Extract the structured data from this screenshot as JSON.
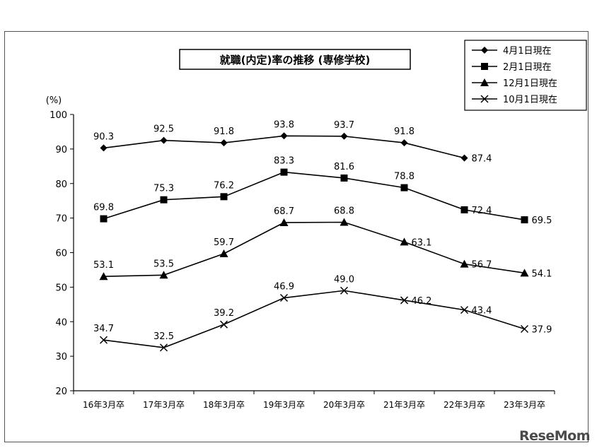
{
  "watermark": "ReseMom",
  "chart_data": {
    "type": "line",
    "title": "就職(内定)率の推移 (専修学校)",
    "y_unit": "(%)",
    "ylim": [
      20,
      100
    ],
    "yticks": [
      20,
      30,
      40,
      50,
      60,
      70,
      80,
      90,
      100
    ],
    "categories": [
      "16年3月卒",
      "17年3月卒",
      "18年3月卒",
      "19年3月卒",
      "20年3月卒",
      "21年3月卒",
      "22年3月卒",
      "23年3月卒"
    ],
    "legend_position": "top-right",
    "grid": false,
    "series": [
      {
        "name": "4月1日現在",
        "marker": "diamond",
        "values": [
          90.3,
          92.5,
          91.8,
          93.8,
          93.7,
          91.8,
          87.4,
          null
        ]
      },
      {
        "name": "2月1日現在",
        "marker": "square",
        "values": [
          69.8,
          75.3,
          76.2,
          83.3,
          81.6,
          78.8,
          72.4,
          69.5
        ]
      },
      {
        "name": "12月1日現在",
        "marker": "triangle",
        "values": [
          53.1,
          53.5,
          59.7,
          68.7,
          68.8,
          63.1,
          56.7,
          54.1
        ]
      },
      {
        "name": "10月1日現在",
        "marker": "cross",
        "values": [
          34.7,
          32.5,
          39.2,
          46.9,
          49.0,
          46.2,
          43.4,
          37.9
        ]
      }
    ],
    "labels": [
      [
        "90.3",
        "92.5",
        "91.8",
        "93.8",
        "93.7",
        "91.8",
        "87.4",
        null
      ],
      [
        "69.8",
        "75.3",
        "76.2",
        "83.3",
        "81.6",
        "78.8",
        "72.4",
        "69.5"
      ],
      [
        "53.1",
        "53.5",
        "59.7",
        "68.7",
        "68.8",
        "63.1",
        "56.7",
        "54.1"
      ],
      [
        "34.7",
        "32.5",
        "39.2",
        "46.9",
        "49.0",
        "46.2",
        "43.4",
        "37.9"
      ]
    ]
  }
}
